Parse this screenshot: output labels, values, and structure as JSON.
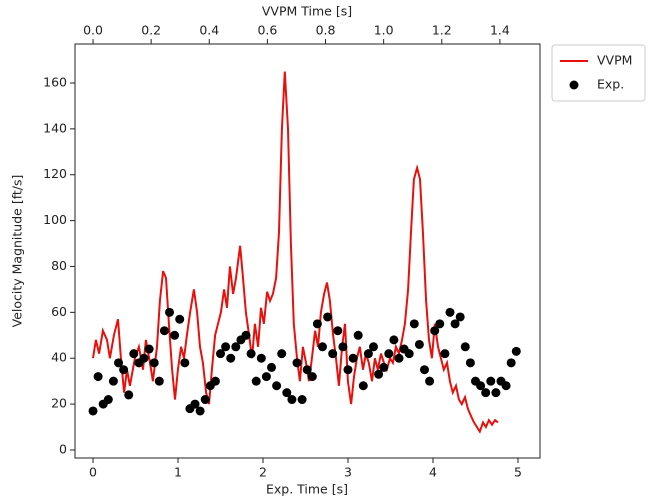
{
  "chart_data": {
    "type": "line",
    "xlabel": "Exp. Time [s]",
    "x2label": "VVPM Time [s]",
    "ylabel": "Velocity Magnitude [ft/s]",
    "xlim": [
      -0.212,
      5.259
    ],
    "xticks": [
      0,
      1,
      2,
      3,
      4,
      5
    ],
    "x2lim": [
      -0.062,
      1.538
    ],
    "x2ticks": [
      {
        "value": 0,
        "label": "0.0"
      },
      0.2,
      0.4,
      0.6,
      0.8,
      {
        "value": 1,
        "label": "1.0"
      },
      1.2,
      1.4
    ],
    "ylim": [
      -3.5,
      177
    ],
    "yticks": [
      0,
      20,
      40,
      60,
      80,
      100,
      120,
      140,
      160
    ],
    "legend": "outside-right",
    "series": [
      {
        "name": "VVPM",
        "type": "line",
        "axis": "x2",
        "color": "#e8100c",
        "x": [
          0,
          0.01,
          0.021,
          0.034,
          0.048,
          0.058,
          0.072,
          0.086,
          0.096,
          0.107,
          0.117,
          0.127,
          0.144,
          0.158,
          0.172,
          0.182,
          0.196,
          0.206,
          0.22,
          0.23,
          0.241,
          0.251,
          0.261,
          0.272,
          0.282,
          0.292,
          0.303,
          0.313,
          0.323,
          0.334,
          0.347,
          0.358,
          0.368,
          0.378,
          0.389,
          0.399,
          0.409,
          0.42,
          0.43,
          0.44,
          0.451,
          0.461,
          0.471,
          0.482,
          0.492,
          0.506,
          0.516,
          0.526,
          0.537,
          0.547,
          0.557,
          0.568,
          0.578,
          0.588,
          0.599,
          0.609,
          0.619,
          0.63,
          0.64,
          0.65,
          0.66,
          0.671,
          0.681,
          0.691,
          0.702,
          0.712,
          0.722,
          0.733,
          0.743,
          0.753,
          0.764,
          0.774,
          0.784,
          0.795,
          0.805,
          0.815,
          0.826,
          0.836,
          0.846,
          0.857,
          0.867,
          0.877,
          0.888,
          0.898,
          0.908,
          0.918,
          0.929,
          0.939,
          0.949,
          0.96,
          0.97,
          0.98,
          0.991,
          1.001,
          1.011,
          1.022,
          1.032,
          1.042,
          1.053,
          1.063,
          1.073,
          1.084,
          1.094,
          1.104,
          1.115,
          1.125,
          1.135,
          1.146,
          1.156,
          1.166,
          1.176,
          1.187,
          1.197,
          1.207,
          1.218,
          1.228,
          1.238,
          1.249,
          1.259,
          1.269,
          1.28,
          1.29,
          1.3,
          1.311,
          1.321,
          1.331,
          1.342,
          1.352,
          1.362,
          1.373,
          1.383,
          1.393
        ],
        "values": [
          40,
          48,
          42,
          52,
          48,
          40,
          50,
          57,
          40,
          25,
          35,
          28,
          40,
          45,
          35,
          48,
          38,
          30,
          45,
          65,
          78,
          75,
          55,
          35,
          22,
          35,
          45,
          40,
          50,
          60,
          70,
          60,
          45,
          38,
          25,
          20,
          35,
          50,
          55,
          60,
          70,
          62,
          80,
          68,
          75,
          89,
          75,
          60,
          50,
          40,
          55,
          45,
          62,
          55,
          69,
          65,
          68,
          75,
          95,
          140,
          165,
          140,
          90,
          55,
          40,
          30,
          45,
          38,
          30,
          40,
          52,
          45,
          60,
          68,
          73,
          65,
          50,
          40,
          28,
          45,
          55,
          30,
          20,
          32,
          40,
          45,
          35,
          42,
          38,
          30,
          40,
          35,
          42,
          38,
          35,
          40,
          38,
          45,
          42,
          48,
          55,
          70,
          95,
          118,
          123,
          118,
          95,
          65,
          48,
          40,
          55,
          45,
          40,
          35,
          38,
          30,
          25,
          28,
          22,
          20,
          23,
          18,
          15,
          12,
          10,
          8,
          12,
          10,
          13,
          11,
          13,
          12
        ]
      },
      {
        "name": "Exp.",
        "type": "scatter",
        "color": "#000000",
        "x": [
          0,
          0.06,
          0.12,
          0.18,
          0.24,
          0.3,
          0.36,
          0.42,
          0.48,
          0.54,
          0.6,
          0.66,
          0.72,
          0.78,
          0.84,
          0.9,
          0.96,
          1.02,
          1.08,
          1.14,
          1.2,
          1.26,
          1.32,
          1.38,
          1.44,
          1.5,
          1.56,
          1.62,
          1.68,
          1.74,
          1.8,
          1.86,
          1.92,
          1.98,
          2.04,
          2.1,
          2.16,
          2.22,
          2.28,
          2.34,
          2.4,
          2.46,
          2.52,
          2.58,
          2.64,
          2.7,
          2.76,
          2.82,
          2.88,
          2.94,
          3,
          3.06,
          3.12,
          3.18,
          3.24,
          3.3,
          3.36,
          3.42,
          3.48,
          3.54,
          3.6,
          3.66,
          3.72,
          3.78,
          3.84,
          3.9,
          3.96,
          4.02,
          4.08,
          4.14,
          4.2,
          4.26,
          4.32,
          4.38,
          4.44,
          4.5,
          4.56,
          4.62,
          4.68,
          4.74,
          4.8,
          4.86,
          4.92,
          4.98
        ],
        "values": [
          17,
          32,
          20,
          22,
          30,
          38,
          35,
          24,
          42,
          38,
          40,
          44,
          38,
          30,
          52,
          60,
          50,
          57,
          38,
          18,
          20,
          17,
          22,
          28,
          30,
          42,
          45,
          40,
          45,
          48,
          50,
          42,
          30,
          40,
          32,
          36,
          28,
          42,
          25,
          22,
          38,
          22,
          35,
          32,
          55,
          45,
          58,
          42,
          52,
          45,
          35,
          40,
          50,
          28,
          42,
          45,
          33,
          36,
          42,
          48,
          40,
          44,
          42,
          55,
          46,
          35,
          30,
          52,
          55,
          42,
          60,
          55,
          58,
          45,
          38,
          30,
          28,
          25,
          30,
          25,
          30,
          28,
          38,
          43
        ]
      }
    ]
  }
}
